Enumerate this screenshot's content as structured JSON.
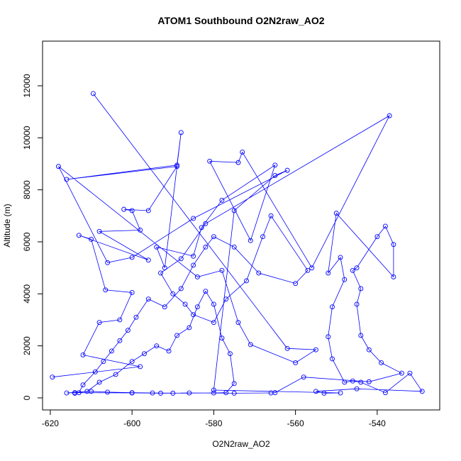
{
  "chart_data": {
    "type": "line-points",
    "title": "ATOM1 Southbound O2N2raw_AO2",
    "x_label": "O2N2raw_AO2",
    "y_label": "Altitude (m)",
    "color": "#0000ff",
    "xlim": [
      -621.9,
      -524.7
    ],
    "ylim": [
      -464,
      13717
    ],
    "xticks": [
      -620,
      -600,
      -580,
      -560,
      -540
    ],
    "yticks": [
      0,
      2000,
      4000,
      6000,
      8000,
      10000,
      12000
    ],
    "x": [
      -619.5,
      -598,
      -612,
      -608,
      -603,
      -600,
      -606.5,
      -610,
      -613,
      -596,
      -608,
      -598,
      -600,
      -602,
      -596,
      -589,
      -616,
      -589,
      -588,
      -592,
      -594,
      -585,
      -583,
      -578,
      -565,
      -571,
      -581,
      -574,
      -573,
      -556,
      -537,
      -582,
      -588,
      -593,
      -590,
      -587,
      -585,
      -580,
      -577,
      -572,
      -568,
      -566,
      -557,
      -560,
      -569,
      -575,
      -580,
      -582,
      -585,
      -588,
      -592,
      -596,
      -599,
      -601,
      -603,
      -605,
      -607,
      -609,
      -612,
      -613,
      -614,
      -611,
      -608,
      -604,
      -600,
      -597,
      -594,
      -591,
      -589,
      -586,
      -584,
      -582,
      -580,
      -578,
      -576,
      -575,
      -577,
      -580,
      -590,
      -595,
      -600,
      -606,
      -610,
      -616,
      -614,
      -600,
      -593,
      -586,
      -575,
      -566,
      -565,
      -558,
      -542,
      -534,
      -539,
      -542,
      -544,
      -545,
      -544,
      -546,
      -545,
      -540,
      -538,
      -536,
      -536,
      -550,
      -552,
      -549,
      -548,
      -551,
      -552,
      -551,
      -548,
      -546,
      -544,
      -538,
      -532,
      -529,
      -545,
      -555,
      -553,
      -549,
      -580,
      -575,
      -565,
      -562,
      -585,
      -600,
      -606,
      -618,
      -584,
      -578,
      -574,
      -571,
      -560,
      -555,
      -562,
      -609.5
    ],
    "values": [
      800,
      1200,
      1650,
      2900,
      3000,
      4050,
      4150,
      6100,
      6250,
      5300,
      6400,
      6450,
      7200,
      7250,
      7200,
      8900,
      8400,
      8950,
      10200,
      5000,
      5800,
      5450,
      6550,
      7600,
      8950,
      6050,
      9100,
      9050,
      9450,
      5000,
      10850,
      6700,
      5350,
      4800,
      4000,
      3600,
      3200,
      2900,
      3800,
      4500,
      6200,
      7000,
      4900,
      4400,
      4800,
      5800,
      6200,
      5800,
      5100,
      4200,
      3500,
      3800,
      3100,
      2600,
      2200,
      1800,
      1400,
      1000,
      500,
      200,
      180,
      250,
      600,
      900,
      1400,
      1700,
      2000,
      1800,
      2400,
      2700,
      3500,
      4100,
      3600,
      2300,
      1700,
      550,
      200,
      190,
      180,
      190,
      200,
      220,
      250,
      190,
      200,
      190,
      180,
      190,
      180,
      190,
      200,
      800,
      620,
      950,
      1350,
      1850,
      2400,
      3600,
      4200,
      4900,
      5000,
      6200,
      6600,
      5900,
      4650,
      7100,
      4800,
      5400,
      4550,
      3500,
      2350,
      1500,
      600,
      650,
      600,
      200,
      950,
      250,
      350,
      250,
      180,
      190,
      300,
      7200,
      8550,
      8750,
      6900,
      5400,
      5200,
      8900,
      4650,
      4900,
      2900,
      2050,
      1350,
      1850,
      1900,
      11700
    ]
  }
}
